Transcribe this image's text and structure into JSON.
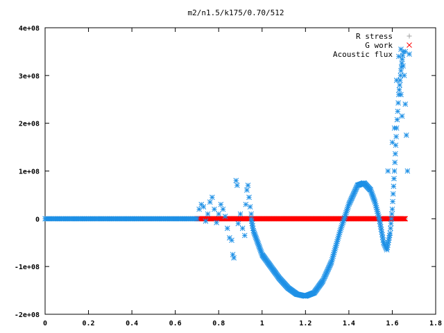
{
  "chart_data": {
    "type": "scatter",
    "title": "m2/n1.5/k175/0.70/512",
    "xlim": [
      0,
      1.8
    ],
    "ylim": [
      -200000000,
      400000000
    ],
    "x_ticks": [
      0,
      0.2,
      0.4,
      0.6,
      0.8,
      1,
      1.2,
      1.4,
      1.6,
      1.8
    ],
    "x_tick_labels": [
      "0",
      "0.2",
      "0.4",
      "0.6",
      "0.8",
      "1",
      "1.2",
      "1.4",
      "1.6",
      "1.8"
    ],
    "y_ticks": [
      -200000000,
      -100000000,
      0,
      100000000,
      200000000,
      300000000,
      400000000
    ],
    "y_tick_labels": [
      "-2e+08",
      "-1e+08",
      "0",
      "1e+08",
      "2e+08",
      "3e+08",
      "4e+08"
    ],
    "legend_position": "top-right",
    "grid": false,
    "series": [
      {
        "name": "R stress",
        "color": "#a0a0a0",
        "marker": "plus",
        "segments": [
          {
            "x_range": [
              0,
              1.66
            ],
            "y": 0,
            "step": 0.004
          }
        ]
      },
      {
        "name": "G work",
        "color": "#ff0000",
        "marker": "cross",
        "segments": [
          {
            "x_range": [
              0.7,
              1.66
            ],
            "y": 0,
            "step": 0.0025
          }
        ]
      },
      {
        "name": "Acoustic flux",
        "color": "#1e90e6",
        "marker": "star",
        "segments": [
          {
            "x_range": [
              0,
              0.7
            ],
            "y": 0,
            "step": 0.005
          }
        ],
        "curve": [
          [
            0.95,
            0
          ],
          [
            0.96,
            -25000000
          ],
          [
            0.98,
            -50000000
          ],
          [
            1.0,
            -75000000
          ],
          [
            1.04,
            -100000000
          ],
          [
            1.08,
            -125000000
          ],
          [
            1.12,
            -145000000
          ],
          [
            1.16,
            -158000000
          ],
          [
            1.2,
            -162000000
          ],
          [
            1.24,
            -155000000
          ],
          [
            1.28,
            -130000000
          ],
          [
            1.32,
            -90000000
          ],
          [
            1.36,
            -25000000
          ],
          [
            1.4,
            30000000
          ],
          [
            1.44,
            70000000
          ],
          [
            1.47,
            75000000
          ],
          [
            1.5,
            60000000
          ],
          [
            1.52,
            35000000
          ],
          [
            1.54,
            0
          ],
          [
            1.56,
            -50000000
          ],
          [
            1.575,
            -65000000
          ],
          [
            1.59,
            -30000000
          ],
          [
            1.6,
            20000000
          ],
          [
            1.61,
            100000000
          ],
          [
            1.62,
            190000000
          ],
          [
            1.63,
            260000000
          ],
          [
            1.64,
            310000000
          ],
          [
            1.65,
            350000000
          ]
        ],
        "scatter": [
          [
            0.71,
            20000000
          ],
          [
            0.72,
            30000000
          ],
          [
            0.73,
            25000000
          ],
          [
            0.74,
            -5000000
          ],
          [
            0.75,
            10000000
          ],
          [
            0.76,
            35000000
          ],
          [
            0.77,
            45000000
          ],
          [
            0.78,
            20000000
          ],
          [
            0.79,
            -8000000
          ],
          [
            0.8,
            10000000
          ],
          [
            0.81,
            30000000
          ],
          [
            0.82,
            20000000
          ],
          [
            0.83,
            5000000
          ],
          [
            0.84,
            -20000000
          ],
          [
            0.85,
            -40000000
          ],
          [
            0.86,
            -45000000
          ],
          [
            0.865,
            -75000000
          ],
          [
            0.87,
            -82000000
          ],
          [
            0.88,
            80000000
          ],
          [
            0.885,
            70000000
          ],
          [
            0.89,
            -10000000
          ],
          [
            0.9,
            10000000
          ],
          [
            0.91,
            -20000000
          ],
          [
            0.92,
            -35000000
          ],
          [
            0.925,
            30000000
          ],
          [
            0.93,
            60000000
          ],
          [
            0.935,
            70000000
          ],
          [
            0.94,
            45000000
          ],
          [
            0.945,
            25000000
          ],
          [
            0.95,
            10000000
          ],
          [
            1.58,
            100000000
          ],
          [
            1.6,
            160000000
          ],
          [
            1.61,
            190000000
          ],
          [
            1.62,
            290000000
          ],
          [
            1.63,
            340000000
          ],
          [
            1.64,
            355000000
          ],
          [
            1.65,
            320000000
          ],
          [
            1.655,
            300000000
          ],
          [
            1.66,
            240000000
          ],
          [
            1.665,
            175000000
          ],
          [
            1.67,
            100000000
          ],
          [
            1.64,
            260000000
          ],
          [
            1.645,
            215000000
          ],
          [
            1.66,
            350000000
          ]
        ]
      }
    ]
  }
}
